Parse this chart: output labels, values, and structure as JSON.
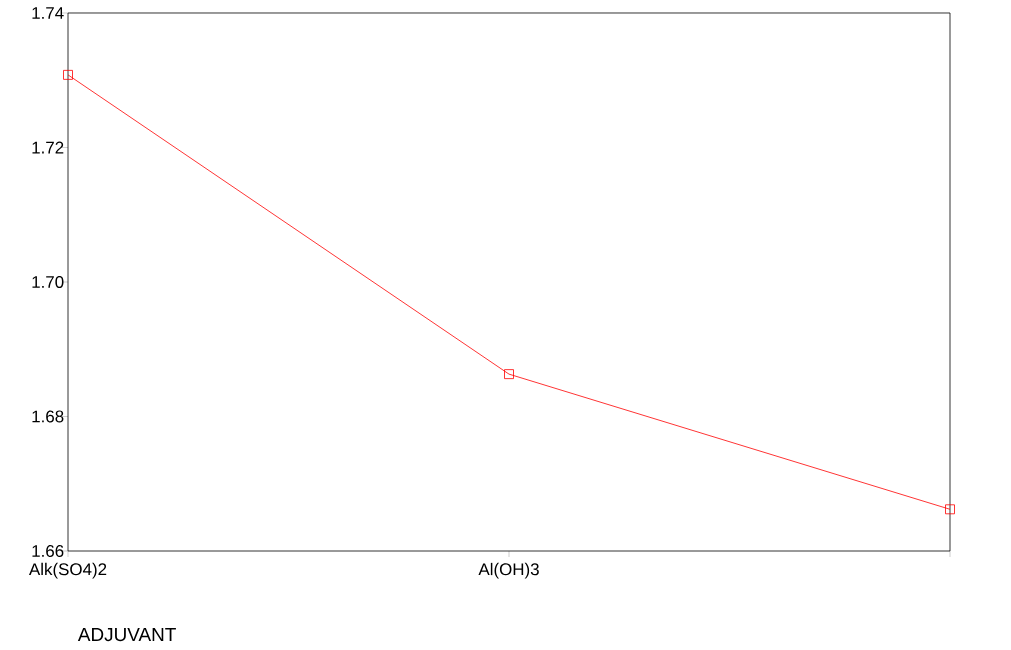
{
  "chart_data": {
    "type": "line",
    "xlabel": "ADJUVANT",
    "categories": [
      "Alk(SO4)2",
      "Al(OH)3",
      null
    ],
    "series": [
      {
        "color": "#ff0000",
        "values": [
          1.7308,
          1.6863,
          1.6662
        ]
      }
    ],
    "ylim": [
      1.66,
      1.74
    ],
    "yticks": [
      {
        "value": 1.66,
        "label": "1.66"
      },
      {
        "value": 1.68,
        "label": "1.68"
      },
      {
        "value": 1.7,
        "label": "1.70"
      },
      {
        "value": 1.72,
        "label": "1.72"
      },
      {
        "value": 1.74,
        "label": "1.74"
      }
    ],
    "marker": "square",
    "line_style": "solid"
  }
}
